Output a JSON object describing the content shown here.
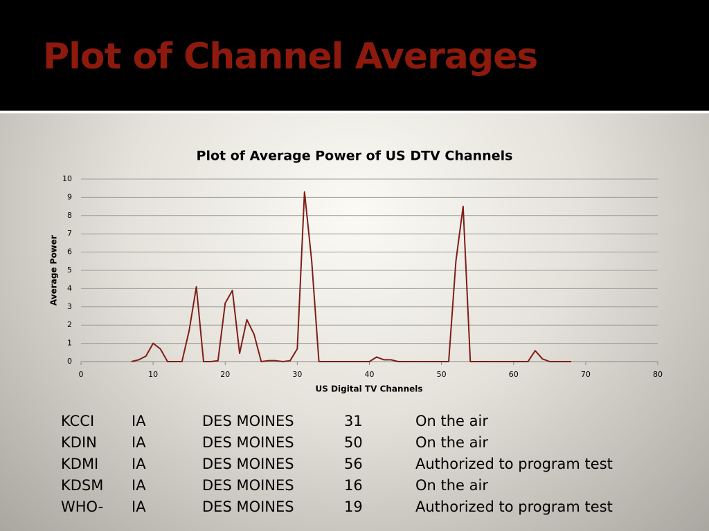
{
  "slide_title": "Plot of Channel Averages",
  "chart_data": {
    "type": "line",
    "title": "Plot of Average Power of US DTV Channels",
    "x_label": "US Digital TV Channels",
    "y_label": "Average Power",
    "x": [
      7,
      8,
      9,
      10,
      11,
      12,
      13,
      14,
      15,
      16,
      17,
      18,
      19,
      20,
      21,
      22,
      23,
      24,
      25,
      26,
      27,
      28,
      29,
      30,
      31,
      32,
      33,
      34,
      35,
      36,
      37,
      38,
      39,
      40,
      41,
      42,
      43,
      44,
      45,
      46,
      47,
      48,
      49,
      50,
      51,
      52,
      53,
      54,
      55,
      56,
      57,
      58,
      59,
      60,
      61,
      62,
      63,
      64,
      65,
      66,
      67,
      68
    ],
    "values": [
      0,
      0.1,
      0.3,
      1.0,
      0.7,
      0,
      0,
      0,
      1.7,
      4.1,
      0,
      0,
      0.05,
      3.2,
      3.9,
      0.45,
      2.3,
      1.5,
      0,
      0.05,
      0.05,
      0,
      0.05,
      0.7,
      9.3,
      5.5,
      0,
      0,
      0,
      0,
      0,
      0,
      0,
      0,
      0.25,
      0.1,
      0.1,
      0,
      0,
      0,
      0,
      0,
      0,
      0,
      0,
      5.5,
      8.5,
      0,
      0,
      0,
      0,
      0,
      0,
      0,
      0,
      0,
      0.6,
      0.15,
      0,
      0,
      0,
      0
    ],
    "color": "#7f1d17",
    "xlim": [
      0,
      80
    ],
    "xticks": [
      0,
      10,
      20,
      30,
      40,
      50,
      60,
      70,
      80
    ],
    "ylim": [
      0,
      10
    ],
    "yticks": [
      0,
      1,
      2,
      3,
      4,
      5,
      6,
      7,
      8,
      9,
      10
    ],
    "grid": true
  },
  "table": {
    "rows": [
      [
        "KCCI",
        "IA",
        "DES MOINES",
        "31",
        "On the air"
      ],
      [
        "KDIN",
        "IA",
        "DES MOINES",
        "50",
        "On the air"
      ],
      [
        "KDMI",
        "IA",
        "DES MOINES",
        "56",
        "Authorized to program test"
      ],
      [
        "KDSM",
        "IA",
        "DES MOINES",
        "16",
        "On the air"
      ],
      [
        "WHO-",
        "IA",
        "DES MOINES",
        "19",
        "Authorized to program test"
      ]
    ]
  }
}
